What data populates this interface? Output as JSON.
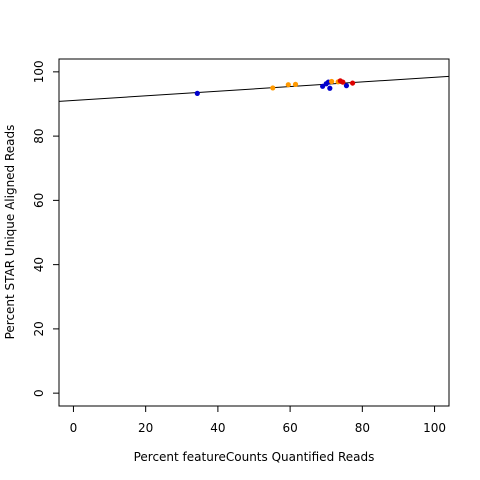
{
  "chart_data": {
    "type": "scatter",
    "xlabel": "Percent featureCounts Quantified Reads",
    "ylabel": "Percent STAR Unique Aligned Reads",
    "xlim": [
      -4,
      104
    ],
    "ylim": [
      -4,
      104
    ],
    "xticks": [
      0,
      20,
      40,
      60,
      80,
      100
    ],
    "yticks": [
      0,
      20,
      40,
      60,
      80,
      100
    ],
    "grid": false,
    "series": [
      {
        "color": "#0000cc",
        "points": [
          {
            "x": 34.3,
            "y": 93.3
          },
          {
            "x": 69.0,
            "y": 95.5
          },
          {
            "x": 70.0,
            "y": 96.3
          },
          {
            "x": 70.6,
            "y": 96.8
          },
          {
            "x": 71.0,
            "y": 94.9
          },
          {
            "x": 75.6,
            "y": 95.7
          }
        ]
      },
      {
        "color": "#ff9900",
        "points": [
          {
            "x": 55.2,
            "y": 95.0
          },
          {
            "x": 59.5,
            "y": 96.0
          },
          {
            "x": 61.5,
            "y": 96.1
          },
          {
            "x": 71.5,
            "y": 97.0
          },
          {
            "x": 73.3,
            "y": 96.9
          }
        ]
      },
      {
        "color": "#dd0000",
        "points": [
          {
            "x": 73.9,
            "y": 97.2
          },
          {
            "x": 74.6,
            "y": 96.8
          },
          {
            "x": 77.3,
            "y": 96.5
          }
        ]
      }
    ],
    "regression_line": {
      "intercept": 91.1,
      "slope": 0.072,
      "color": "#000000"
    }
  }
}
